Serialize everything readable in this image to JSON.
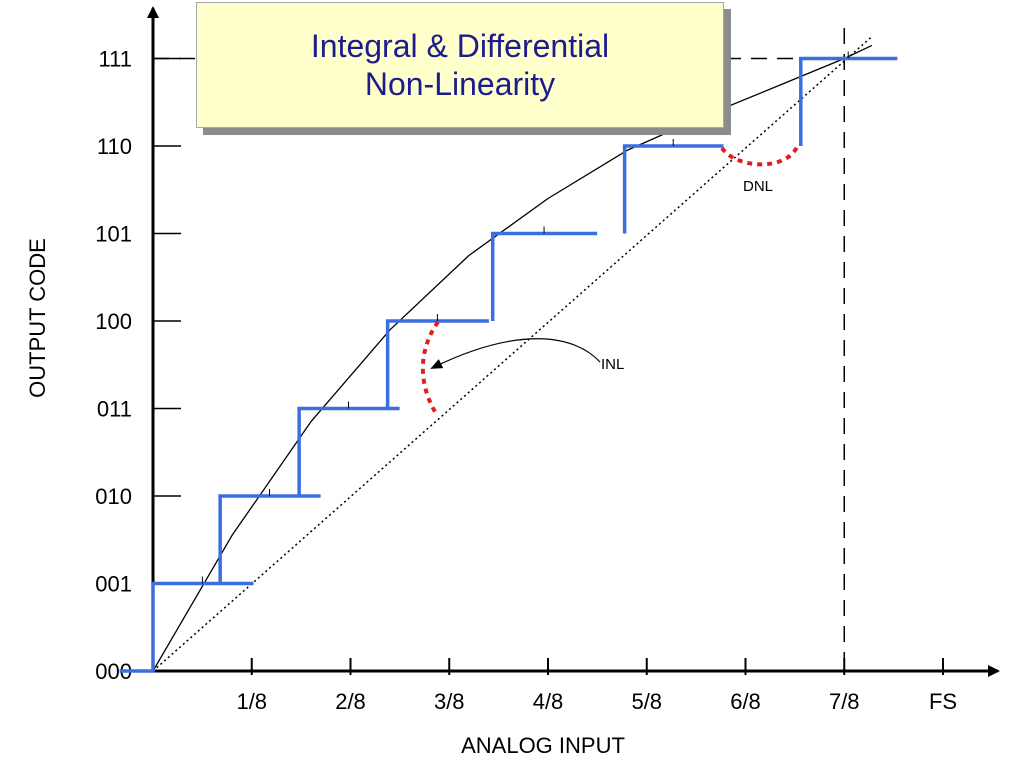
{
  "title": {
    "line1": "Integral & Differential",
    "line2": "Non-Linearity"
  },
  "chart_data": {
    "type": "line",
    "title": "Integral & Differential Non-Linearity",
    "xlabel": "ANALOG INPUT",
    "ylabel": "OUTPUT CODE",
    "xlim": [
      0,
      1
    ],
    "ylim": [
      0,
      7
    ],
    "x_ticks": [
      {
        "label": "1/8",
        "value": 0.125
      },
      {
        "label": "2/8",
        "value": 0.25
      },
      {
        "label": "3/8",
        "value": 0.375
      },
      {
        "label": "4/8",
        "value": 0.5
      },
      {
        "label": "5/8",
        "value": 0.625
      },
      {
        "label": "6/8",
        "value": 0.75
      },
      {
        "label": "7/8",
        "value": 0.875
      },
      {
        "label": "FS",
        "value": 1.0
      }
    ],
    "y_ticks": [
      {
        "label": "000",
        "value": 0
      },
      {
        "label": "001",
        "value": 1
      },
      {
        "label": "010",
        "value": 2
      },
      {
        "label": "011",
        "value": 3
      },
      {
        "label": "100",
        "value": 4
      },
      {
        "label": "101",
        "value": 5
      },
      {
        "label": "110",
        "value": 6
      },
      {
        "label": "111",
        "value": 7
      }
    ],
    "series": [
      {
        "kind": "staircase",
        "color": "#3a6fe0",
        "segments": [
          {
            "x0": -0.04,
            "x1": 0.0,
            "y": 0
          },
          {
            "x0": 0.0,
            "x1": 0.125,
            "y": 1
          },
          {
            "x0": 0.085,
            "x1": 0.21,
            "y": 2
          },
          {
            "x0": 0.185,
            "x1": 0.31,
            "y": 3
          },
          {
            "x0": 0.297,
            "x1": 0.423,
            "y": 4
          },
          {
            "x0": 0.43,
            "x1": 0.56,
            "y": 5
          },
          {
            "x0": 0.597,
            "x1": 0.72,
            "y": 6
          },
          {
            "x0": 0.82,
            "x1": 0.94,
            "y": 7
          }
        ],
        "risers": [
          {
            "x": 0.0,
            "y0": 0,
            "y1": 1
          },
          {
            "x": 0.085,
            "y0": 1,
            "y1": 2
          },
          {
            "x": 0.185,
            "y0": 2,
            "y1": 3
          },
          {
            "x": 0.297,
            "y0": 3,
            "y1": 4
          },
          {
            "x": 0.43,
            "y0": 4,
            "y1": 5
          },
          {
            "x": 0.597,
            "y0": 5,
            "y1": 6
          },
          {
            "x": 0.82,
            "y0": 6,
            "y1": 7
          }
        ]
      },
      {
        "kind": "actual-transfer-curve",
        "color": "#000000",
        "x": [
          0.0,
          0.1,
          0.2,
          0.3,
          0.4,
          0.5,
          0.6,
          0.7,
          0.8,
          0.875,
          0.91
        ],
        "y": [
          0.0,
          1.55,
          2.85,
          3.9,
          4.75,
          5.4,
          5.95,
          6.35,
          6.72,
          7.0,
          7.15
        ]
      },
      {
        "kind": "ideal-line",
        "color": "#000000",
        "dashed": true,
        "x": [
          0.0,
          0.91
        ],
        "y": [
          0.0,
          7.25
        ]
      }
    ],
    "reference_lines": [
      {
        "orientation": "horizontal",
        "y": 7,
        "dashed": true
      },
      {
        "orientation": "vertical",
        "x": 0.875,
        "dashed": true
      }
    ],
    "annotations": [
      {
        "label": "INL",
        "color": "#e01e1e"
      },
      {
        "label": "DNL",
        "color": "#e01e1e"
      }
    ],
    "grid": false
  }
}
